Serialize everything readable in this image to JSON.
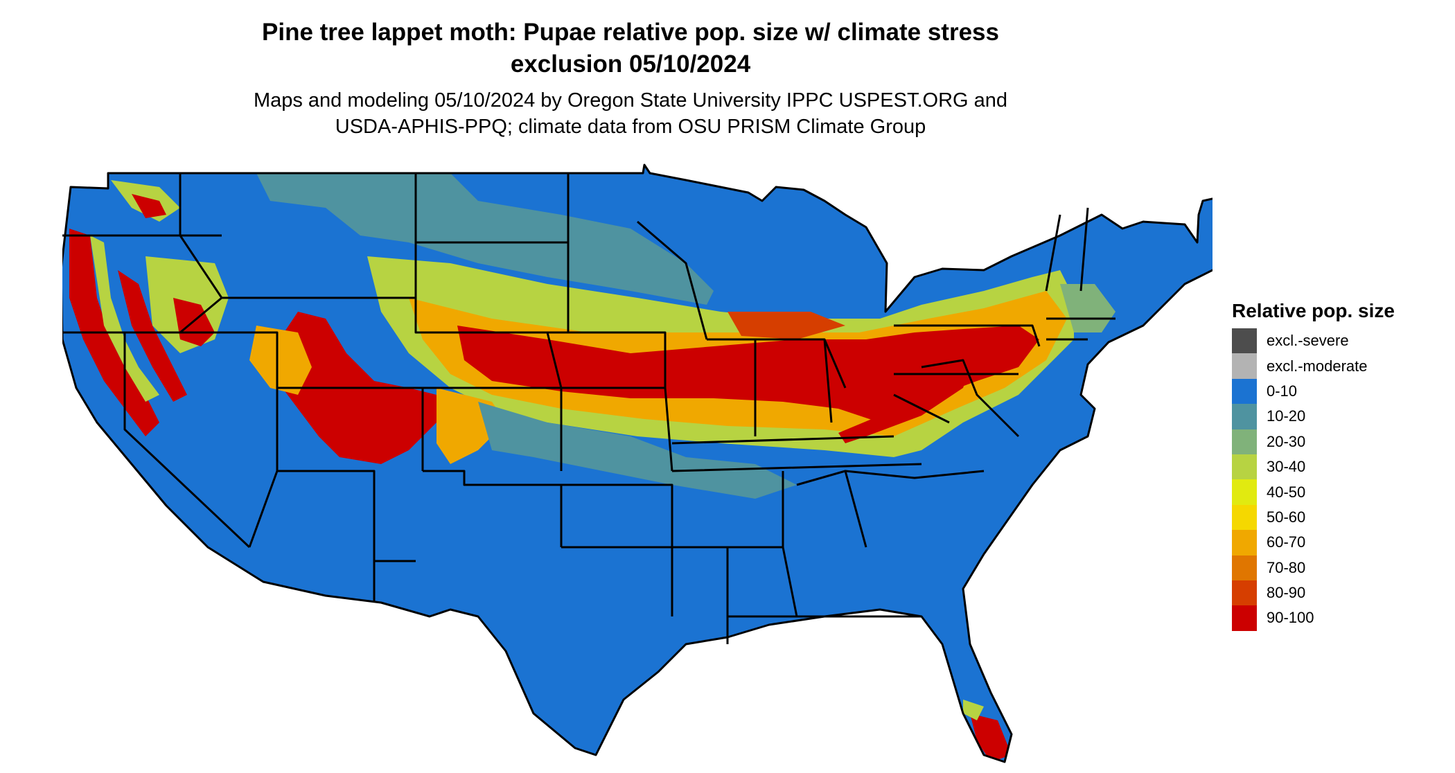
{
  "title": {
    "line1": "Pine tree lappet moth: Pupae relative pop. size w/ climate stress",
    "line2": "exclusion 05/10/2024"
  },
  "subtitle": {
    "line1": "Maps and modeling 05/10/2024 by Oregon State University IPPC USPEST.ORG and",
    "line2": "USDA-APHIS-PPQ; climate data from OSU PRISM Climate Group"
  },
  "map": {
    "region": "Contiguous United States",
    "base_color": "#1b73d2",
    "border_color": "#000000",
    "note": "Highest relative population (80-100) concentrated in central band (Kansas, Missouri, Illinois, Indiana, Ohio, Pennsylvania, New Jersey), Sierra Nevada / Cascade foothills of California & Oregon, and mountainous Arizona / New Mexico / Utah / Colorado; southern and northern plains mostly 0-10."
  },
  "legend": {
    "title": "Relative pop. size",
    "items": [
      {
        "label": "excl.-severe",
        "color": "#4d4d4d"
      },
      {
        "label": "excl.-moderate",
        "color": "#b3b3b3"
      },
      {
        "label": "0-10",
        "color": "#1b73d2"
      },
      {
        "label": "10-20",
        "color": "#4f93a0"
      },
      {
        "label": "20-30",
        "color": "#80b27a"
      },
      {
        "label": "30-40",
        "color": "#b7d342"
      },
      {
        "label": "40-50",
        "color": "#e1ea10"
      },
      {
        "label": "50-60",
        "color": "#f5d800"
      },
      {
        "label": "60-70",
        "color": "#f0a800"
      },
      {
        "label": "70-80",
        "color": "#e07600"
      },
      {
        "label": "80-90",
        "color": "#d63e00"
      },
      {
        "label": "90-100",
        "color": "#cc0000"
      }
    ]
  }
}
